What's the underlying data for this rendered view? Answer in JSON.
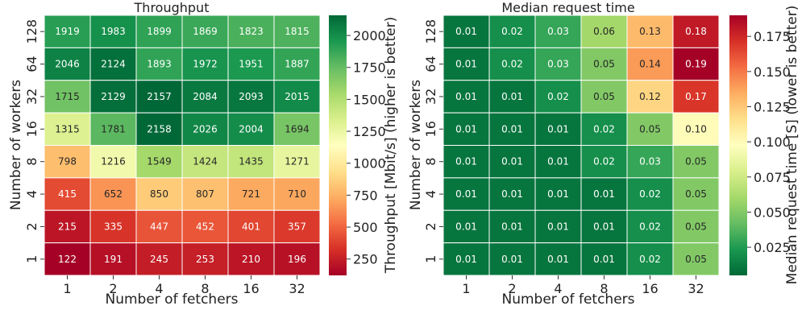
{
  "chart_data": [
    {
      "type": "heatmap",
      "title": "Throughput",
      "xlabel": "Number of fetchers",
      "ylabel": "Number of workers",
      "colorbar_label": "Throughput [Mbit/s] (higher is better)",
      "x_categories": [
        "1",
        "2",
        "4",
        "8",
        "16",
        "32"
      ],
      "y_categories": [
        "128",
        "64",
        "32",
        "16",
        "8",
        "4",
        "2",
        "1"
      ],
      "values": [
        [
          1919,
          1983,
          1899,
          1869,
          1823,
          1815
        ],
        [
          2046,
          2124,
          1893,
          1972,
          1951,
          1887
        ],
        [
          1715,
          2129,
          2157,
          2084,
          2093,
          2015
        ],
        [
          1315,
          1781,
          2158,
          2026,
          2004,
          1694
        ],
        [
          798,
          1216,
          1549,
          1424,
          1435,
          1271
        ],
        [
          415,
          652,
          850,
          807,
          721,
          710
        ],
        [
          215,
          335,
          447,
          452,
          401,
          357
        ],
        [
          122,
          191,
          245,
          253,
          210,
          196
        ]
      ],
      "value_labels": [
        [
          "1919",
          "1983",
          "1899",
          "1869",
          "1823",
          "1815"
        ],
        [
          "2046",
          "2124",
          "1893",
          "1972",
          "1951",
          "1887"
        ],
        [
          "1715",
          "2129",
          "2157",
          "2084",
          "2093",
          "2015"
        ],
        [
          "1315",
          "1781",
          "2158",
          "2026",
          "2004",
          "1694"
        ],
        [
          "798",
          "1216",
          "1549",
          "1424",
          "1435",
          "1271"
        ],
        [
          "415",
          "652",
          "850",
          "807",
          "721",
          "710"
        ],
        [
          "215",
          "335",
          "447",
          "452",
          "401",
          "357"
        ],
        [
          "122",
          "191",
          "245",
          "253",
          "210",
          "196"
        ]
      ],
      "color_range": [
        122,
        2158
      ],
      "colormap": "red-yellow-green",
      "colorbar_ticks": [
        "250",
        "500",
        "750",
        "1000",
        "1250",
        "1500",
        "1750",
        "2000"
      ],
      "colorbar_tick_values": [
        250,
        500,
        750,
        1000,
        1250,
        1500,
        1750,
        2000
      ]
    },
    {
      "type": "heatmap",
      "title": "Median request time",
      "xlabel": "Number of fetchers",
      "ylabel": "Number of workers",
      "colorbar_label": "Median request time [S] (lower is better)",
      "x_categories": [
        "1",
        "2",
        "4",
        "8",
        "16",
        "32"
      ],
      "y_categories": [
        "128",
        "64",
        "32",
        "16",
        "8",
        "4",
        "2",
        "1"
      ],
      "values": [
        [
          0.01,
          0.02,
          0.03,
          0.06,
          0.13,
          0.18
        ],
        [
          0.01,
          0.02,
          0.03,
          0.05,
          0.14,
          0.19
        ],
        [
          0.01,
          0.01,
          0.02,
          0.05,
          0.12,
          0.17
        ],
        [
          0.01,
          0.01,
          0.01,
          0.02,
          0.05,
          0.1
        ],
        [
          0.01,
          0.01,
          0.01,
          0.02,
          0.03,
          0.05
        ],
        [
          0.01,
          0.01,
          0.01,
          0.01,
          0.02,
          0.05
        ],
        [
          0.01,
          0.01,
          0.01,
          0.01,
          0.02,
          0.05
        ],
        [
          0.01,
          0.01,
          0.01,
          0.01,
          0.02,
          0.05
        ]
      ],
      "value_labels": [
        [
          "0.01",
          "0.02",
          "0.03",
          "0.06",
          "0.13",
          "0.18"
        ],
        [
          "0.01",
          "0.02",
          "0.03",
          "0.05",
          "0.14",
          "0.19"
        ],
        [
          "0.01",
          "0.01",
          "0.02",
          "0.05",
          "0.12",
          "0.17"
        ],
        [
          "0.01",
          "0.01",
          "0.01",
          "0.02",
          "0.05",
          "0.10"
        ],
        [
          "0.01",
          "0.01",
          "0.01",
          "0.02",
          "0.03",
          "0.05"
        ],
        [
          "0.01",
          "0.01",
          "0.01",
          "0.01",
          "0.02",
          "0.05"
        ],
        [
          "0.01",
          "0.01",
          "0.01",
          "0.01",
          "0.02",
          "0.05"
        ],
        [
          "0.01",
          "0.01",
          "0.01",
          "0.01",
          "0.02",
          "0.05"
        ]
      ],
      "color_range": [
        0.005,
        0.19
      ],
      "colormap": "green-yellow-red",
      "colorbar_ticks": [
        "0.025",
        "0.050",
        "0.075",
        "0.100",
        "0.125",
        "0.150",
        "0.175"
      ],
      "colorbar_tick_values": [
        0.025,
        0.05,
        0.075,
        0.1,
        0.125,
        0.15,
        0.175
      ]
    }
  ]
}
